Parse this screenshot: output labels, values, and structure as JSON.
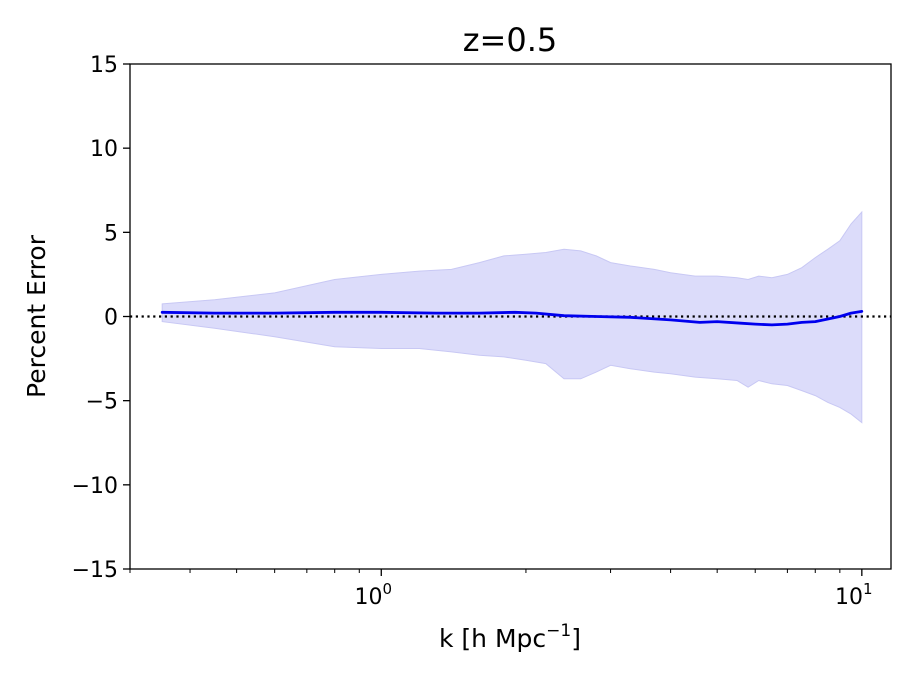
{
  "chart_data": {
    "type": "line",
    "title": "z=0.5",
    "xlabel": {
      "base": "k [h Mpc",
      "sup": "−1",
      "end": "]"
    },
    "ylabel": "Percent Error",
    "xscale": "log",
    "xlim": [
      0.3,
      11.5
    ],
    "ylim": [
      -15,
      15
    ],
    "yticks": [
      {
        "value": 15,
        "label": "15"
      },
      {
        "value": 10,
        "label": "10"
      },
      {
        "value": 5,
        "label": "5"
      },
      {
        "value": 0,
        "label": "0"
      },
      {
        "value": -5,
        "label": "−5"
      },
      {
        "value": -10,
        "label": "−10"
      },
      {
        "value": -15,
        "label": "−15"
      }
    ],
    "xticks_major": [
      {
        "value": 1,
        "base": "10",
        "exp": "0"
      },
      {
        "value": 10,
        "base": "10",
        "exp": "1"
      }
    ],
    "xticks_minor": [
      0.3,
      0.4,
      0.5,
      0.6,
      0.7,
      0.8,
      0.9,
      2,
      3,
      4,
      5,
      6,
      7,
      8,
      9
    ],
    "reference_line": {
      "y": 0,
      "style": "dotted",
      "color": "#000000"
    },
    "series": [
      {
        "name": "mean",
        "color": "#0000ee",
        "x": [
          0.35,
          0.45,
          0.6,
          0.8,
          1.0,
          1.3,
          1.6,
          1.9,
          2.1,
          2.4,
          2.8,
          3.3,
          4.0,
          4.6,
          5.0,
          5.6,
          6.0,
          6.5,
          7.0,
          7.5,
          8.0,
          8.5,
          9.0,
          9.5,
          10.0
        ],
        "y": [
          0.25,
          0.2,
          0.2,
          0.25,
          0.25,
          0.2,
          0.2,
          0.25,
          0.2,
          0.05,
          0.0,
          -0.05,
          -0.2,
          -0.35,
          -0.3,
          -0.4,
          -0.45,
          -0.5,
          -0.45,
          -0.35,
          -0.3,
          -0.15,
          0.0,
          0.2,
          0.3
        ]
      }
    ],
    "band": {
      "color": "#dcdcfa",
      "edge_color": "#c8c8f4",
      "x": [
        0.35,
        0.45,
        0.6,
        0.8,
        1.0,
        1.2,
        1.4,
        1.6,
        1.8,
        2.0,
        2.2,
        2.4,
        2.6,
        2.8,
        3.0,
        3.3,
        3.7,
        4.0,
        4.5,
        5.0,
        5.5,
        5.8,
        6.1,
        6.5,
        7.0,
        7.5,
        8.0,
        8.5,
        9.0,
        9.5,
        10.0
      ],
      "upper": [
        0.75,
        1.0,
        1.4,
        2.2,
        2.5,
        2.7,
        2.8,
        3.2,
        3.6,
        3.7,
        3.8,
        4.0,
        3.9,
        3.6,
        3.2,
        3.0,
        2.8,
        2.6,
        2.4,
        2.4,
        2.3,
        2.2,
        2.4,
        2.3,
        2.5,
        2.9,
        3.5,
        4.0,
        4.5,
        5.5,
        6.2
      ],
      "lower": [
        -0.3,
        -0.7,
        -1.2,
        -1.8,
        -1.9,
        -1.9,
        -2.1,
        -2.3,
        -2.4,
        -2.6,
        -2.8,
        -3.7,
        -3.7,
        -3.3,
        -2.9,
        -3.1,
        -3.3,
        -3.4,
        -3.6,
        -3.7,
        -3.8,
        -4.2,
        -3.8,
        -4.0,
        -4.1,
        -4.4,
        -4.7,
        -5.1,
        -5.4,
        -5.8,
        -6.3
      ]
    }
  }
}
